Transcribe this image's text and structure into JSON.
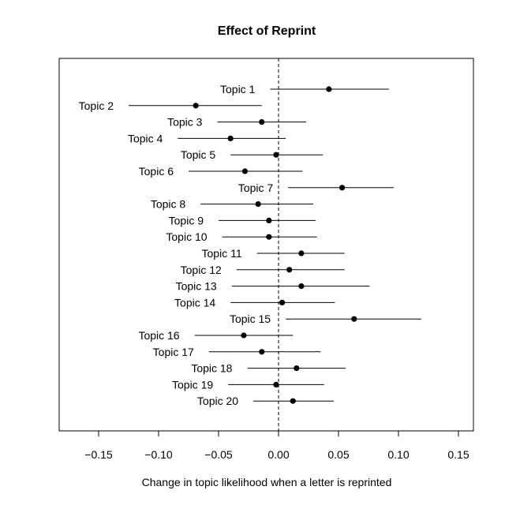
{
  "chart_data": {
    "type": "scatter",
    "subtype": "point-estimate with confidence interval",
    "title": "Effect of Reprint",
    "xlabel": "Change in topic likelihood when a letter is reprinted",
    "ylabel": "",
    "xlim": [
      -0.18,
      0.165
    ],
    "xticks": [
      -0.15,
      -0.1,
      -0.05,
      0.0,
      0.05,
      0.1,
      0.15
    ],
    "xtick_labels": [
      "−0.15",
      "−0.10",
      "−0.05",
      "0.00",
      "0.05",
      "0.10",
      "0.15"
    ],
    "reference_line": {
      "x": 0,
      "style": "dashed"
    },
    "grid": false,
    "point_color": "#000000",
    "items": [
      {
        "label": "Topic 1",
        "estimate": 0.042,
        "lower": -0.007,
        "upper": 0.092
      },
      {
        "label": "Topic 2",
        "estimate": -0.069,
        "lower": -0.125,
        "upper": -0.014
      },
      {
        "label": "Topic 3",
        "estimate": -0.014,
        "lower": -0.051,
        "upper": 0.023
      },
      {
        "label": "Topic 4",
        "estimate": -0.04,
        "lower": -0.084,
        "upper": 0.006
      },
      {
        "label": "Topic 5",
        "estimate": -0.002,
        "lower": -0.04,
        "upper": 0.037
      },
      {
        "label": "Topic 6",
        "estimate": -0.028,
        "lower": -0.075,
        "upper": 0.02
      },
      {
        "label": "Topic 7",
        "estimate": 0.053,
        "lower": 0.008,
        "upper": 0.096
      },
      {
        "label": "Topic 8",
        "estimate": -0.017,
        "lower": -0.065,
        "upper": 0.029
      },
      {
        "label": "Topic 9",
        "estimate": -0.008,
        "lower": -0.05,
        "upper": 0.031
      },
      {
        "label": "Topic 10",
        "estimate": -0.008,
        "lower": -0.047,
        "upper": 0.032
      },
      {
        "label": "Topic 11",
        "estimate": 0.019,
        "lower": -0.018,
        "upper": 0.055
      },
      {
        "label": "Topic 12",
        "estimate": 0.009,
        "lower": -0.035,
        "upper": 0.055
      },
      {
        "label": "Topic 13",
        "estimate": 0.019,
        "lower": -0.039,
        "upper": 0.076
      },
      {
        "label": "Topic 14",
        "estimate": 0.003,
        "lower": -0.04,
        "upper": 0.047
      },
      {
        "label": "Topic 15",
        "estimate": 0.063,
        "lower": 0.006,
        "upper": 0.119
      },
      {
        "label": "Topic 16",
        "estimate": -0.029,
        "lower": -0.07,
        "upper": 0.012
      },
      {
        "label": "Topic 17",
        "estimate": -0.014,
        "lower": -0.058,
        "upper": 0.035
      },
      {
        "label": "Topic 18",
        "estimate": 0.015,
        "lower": -0.026,
        "upper": 0.056
      },
      {
        "label": "Topic 19",
        "estimate": -0.002,
        "lower": -0.042,
        "upper": 0.038
      },
      {
        "label": "Topic 20",
        "estimate": 0.012,
        "lower": -0.021,
        "upper": 0.046
      }
    ]
  }
}
